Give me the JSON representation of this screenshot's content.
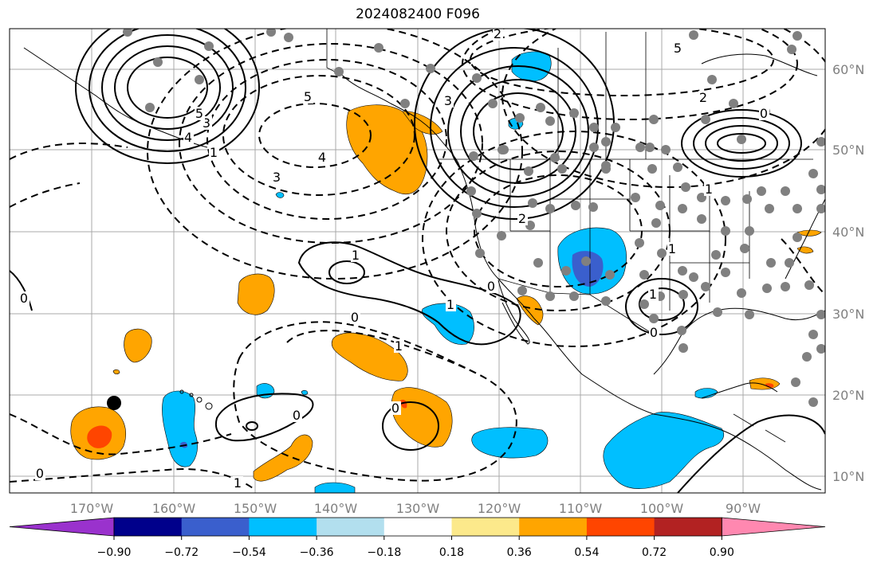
{
  "title": "2024082400 F096",
  "lon_labels": [
    "170°W",
    "160°W",
    "150°W",
    "140°W",
    "130°W",
    "120°W",
    "110°W",
    "100°W",
    "90°W"
  ],
  "lat_labels": [
    "60°N",
    "50°N",
    "40°N",
    "30°N",
    "20°N",
    "10°N"
  ],
  "colorbar": {
    "tick_labels": [
      "−0.90",
      "−0.72",
      "−0.54",
      "−0.36",
      "−0.18",
      "0.18",
      "0.36",
      "0.54",
      "0.72",
      "0.90"
    ],
    "colors": [
      "#9a32cd",
      "#00008b",
      "#3a5fcd",
      "#00bfff",
      "#b2dfee",
      "#ffffff",
      "#fce98b",
      "#ffa500",
      "#ff4500",
      "#b22222",
      "#ff88b0"
    ]
  },
  "contour_labels": [
    {
      "id": "c0_a",
      "text": "0"
    },
    {
      "id": "c0_b",
      "text": "0"
    },
    {
      "id": "c0_c",
      "text": "0"
    },
    {
      "id": "c0_d",
      "text": "0"
    },
    {
      "id": "c0_e",
      "text": "0"
    },
    {
      "id": "c0_f",
      "text": "0"
    },
    {
      "id": "c0_g",
      "text": "0"
    },
    {
      "id": "c0_h",
      "text": "0"
    },
    {
      "id": "c1_a",
      "text": "1"
    },
    {
      "id": "c1_b",
      "text": "1"
    },
    {
      "id": "c1_c",
      "text": "1"
    },
    {
      "id": "c1_d",
      "text": "1"
    },
    {
      "id": "c1_e",
      "text": "1"
    },
    {
      "id": "c1_f",
      "text": "1"
    },
    {
      "id": "c1_g",
      "text": "1"
    },
    {
      "id": "c1_h",
      "text": "1"
    },
    {
      "id": "c2_a",
      "text": "2"
    },
    {
      "id": "c2_b",
      "text": "2"
    },
    {
      "id": "c2_c",
      "text": "2"
    },
    {
      "id": "c3_a",
      "text": "3"
    },
    {
      "id": "c3_b",
      "text": "3"
    },
    {
      "id": "c3_c",
      "text": "3"
    },
    {
      "id": "c4_a",
      "text": "4"
    },
    {
      "id": "c4_b",
      "text": "4"
    },
    {
      "id": "c5_a",
      "text": "5"
    },
    {
      "id": "c5_b",
      "text": "5"
    },
    {
      "id": "c5_c",
      "text": "5"
    }
  ]
}
